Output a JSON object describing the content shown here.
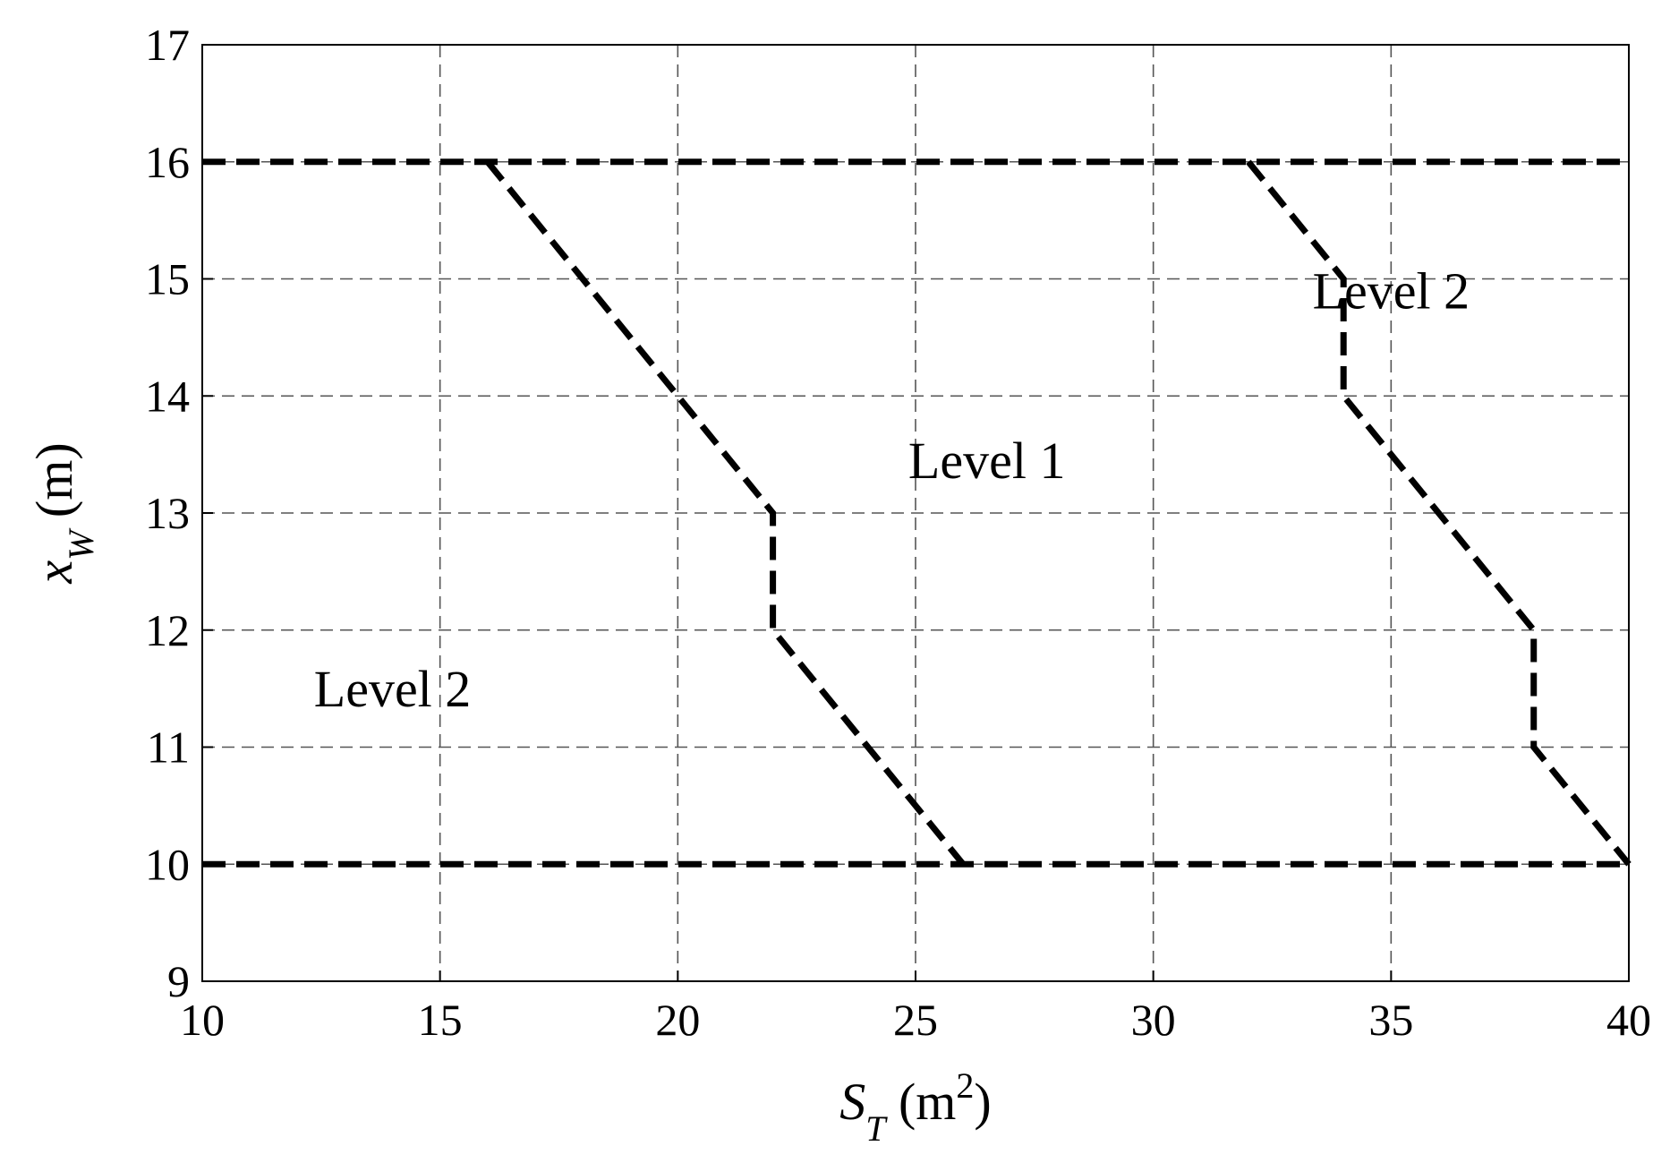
{
  "chart_data": {
    "type": "line",
    "title": "",
    "xlabel": {
      "main": "S",
      "sub": "T",
      "unit_open": " (m",
      "sup": "2",
      "unit_close": ")"
    },
    "ylabel": {
      "main": "x",
      "sub": "W",
      "unit": " (m)"
    },
    "xlim": [
      10,
      40
    ],
    "ylim": [
      9,
      17
    ],
    "x_ticks": [
      10,
      15,
      20,
      25,
      30,
      35,
      40
    ],
    "y_ticks": [
      9,
      10,
      11,
      12,
      13,
      14,
      15,
      16,
      17
    ],
    "grid": true,
    "series": [
      {
        "x": [
          10,
          40
        ],
        "y": [
          16,
          16
        ]
      },
      {
        "x": [
          10,
          40
        ],
        "y": [
          10,
          10
        ]
      },
      {
        "x": [
          16,
          20,
          22,
          22,
          26
        ],
        "y": [
          16,
          14,
          13,
          12,
          10
        ]
      },
      {
        "x": [
          32,
          34,
          34,
          38,
          38,
          40
        ],
        "y": [
          16,
          15,
          14,
          12,
          11,
          10
        ]
      }
    ],
    "annotations": [
      {
        "text": "Level 1",
        "x": 26.5,
        "y": 13.45
      },
      {
        "text": "Level 2",
        "x": 14,
        "y": 11.5
      },
      {
        "text": "Level 2",
        "x": 35,
        "y": 14.9
      }
    ],
    "colors": {
      "line": "#000000",
      "grid": "#555555"
    }
  }
}
